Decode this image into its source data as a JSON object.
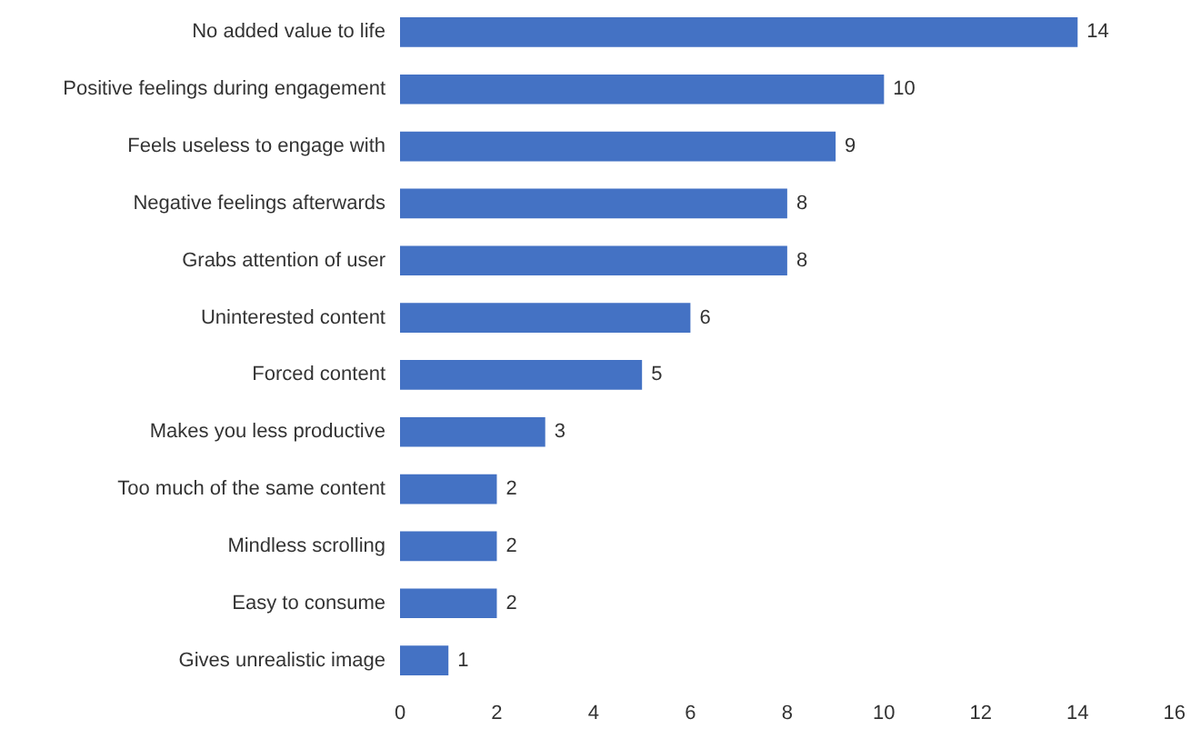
{
  "chart_data": {
    "type": "bar",
    "orientation": "horizontal",
    "categories": [
      "No added value to life",
      "Positive feelings during engagement",
      "Feels useless to engage with",
      "Negative feelings afterwards",
      "Grabs attention of user",
      "Uninterested content",
      "Forced content",
      "Makes you less productive",
      "Too much of the same content",
      "Mindless scrolling",
      "Easy to consume",
      "Gives unrealistic image"
    ],
    "values": [
      14,
      10,
      9,
      8,
      8,
      6,
      5,
      3,
      2,
      2,
      2,
      1
    ],
    "color": "#4472c4",
    "xlim": [
      0,
      16
    ],
    "xticks": [
      0,
      2,
      4,
      6,
      8,
      10,
      12,
      14,
      16
    ],
    "data_labels": true,
    "grid": false
  }
}
